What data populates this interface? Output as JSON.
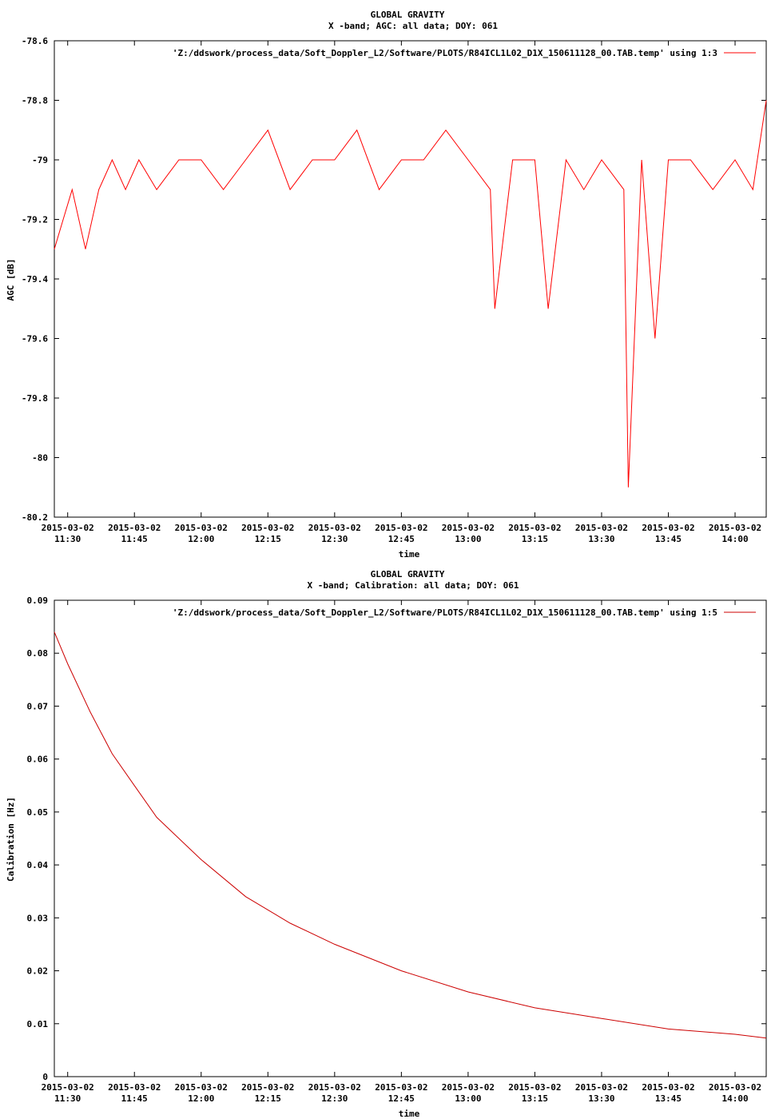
{
  "chart_data": [
    {
      "type": "line",
      "title": "GLOBAL GRAVITY",
      "subtitle": "X -band; AGC: all data; DOY: 061",
      "xlabel": "time",
      "ylabel": "AGC [dB]",
      "legend": "'Z:/ddswork/process_data/Soft_Doppler_L2/Software/PLOTS/R84ICL1L02_D1X_150611128_00.TAB.temp' using 1:3",
      "legend_position": "top-right",
      "line_color": "#ff0000",
      "x_start": "2015-03-02 11:27",
      "x_end": "2015-03-02 14:07",
      "xtick_labels": [
        [
          "2015-03-02",
          "11:30"
        ],
        [
          "2015-03-02",
          "11:45"
        ],
        [
          "2015-03-02",
          "12:00"
        ],
        [
          "2015-03-02",
          "12:15"
        ],
        [
          "2015-03-02",
          "12:30"
        ],
        [
          "2015-03-02",
          "12:45"
        ],
        [
          "2015-03-02",
          "13:00"
        ],
        [
          "2015-03-02",
          "13:15"
        ],
        [
          "2015-03-02",
          "13:30"
        ],
        [
          "2015-03-02",
          "13:45"
        ],
        [
          "2015-03-02",
          "14:00"
        ]
      ],
      "ylim": [
        -80.2,
        -78.6
      ],
      "yticks": [
        -80.2,
        -80,
        -79.8,
        -79.6,
        -79.4,
        -79.2,
        -79,
        -78.8,
        -78.6
      ],
      "ytick_labels": [
        "-80.2",
        "-80",
        "-79.8",
        "-79.6",
        "-79.4",
        "-79.2",
        "-79",
        "-78.8",
        "-78.6"
      ],
      "series": [
        {
          "x": [
            "2015-03-02 11:27",
            "2015-03-02 11:29",
            "2015-03-02 11:31",
            "2015-03-02 11:34",
            "2015-03-02 11:37",
            "2015-03-02 11:40",
            "2015-03-02 11:43",
            "2015-03-02 11:46",
            "2015-03-02 11:50",
            "2015-03-02 11:55",
            "2015-03-02 12:00",
            "2015-03-02 12:05",
            "2015-03-02 12:10",
            "2015-03-02 12:15",
            "2015-03-02 12:20",
            "2015-03-02 12:25",
            "2015-03-02 12:30",
            "2015-03-02 12:35",
            "2015-03-02 12:40",
            "2015-03-02 12:45",
            "2015-03-02 12:50",
            "2015-03-02 12:55",
            "2015-03-02 13:00",
            "2015-03-02 13:05",
            "2015-03-02 13:06",
            "2015-03-02 13:10",
            "2015-03-02 13:15",
            "2015-03-02 13:18",
            "2015-03-02 13:22",
            "2015-03-02 13:26",
            "2015-03-02 13:30",
            "2015-03-02 13:35",
            "2015-03-02 13:36",
            "2015-03-02 13:39",
            "2015-03-02 13:42",
            "2015-03-02 13:45",
            "2015-03-02 13:50",
            "2015-03-02 13:55",
            "2015-03-02 14:00",
            "2015-03-02 14:04",
            "2015-03-02 14:07"
          ],
          "y": [
            -79.3,
            -79.2,
            -79.1,
            -79.3,
            -79.1,
            -79.0,
            -79.1,
            -79.0,
            -79.1,
            -79.0,
            -79.0,
            -79.1,
            -79.0,
            -78.9,
            -79.1,
            -79.0,
            -79.0,
            -78.9,
            -79.1,
            -79.0,
            -79.0,
            -78.9,
            -79.0,
            -79.1,
            -79.5,
            -79.0,
            -79.0,
            -79.5,
            -79.0,
            -79.1,
            -79.0,
            -79.1,
            -80.1,
            -79.0,
            -79.6,
            -79.0,
            -79.0,
            -79.1,
            -79.0,
            -79.1,
            -78.8
          ]
        }
      ]
    },
    {
      "type": "line",
      "title": "GLOBAL GRAVITY",
      "subtitle": "X -band; Calibration: all data; DOY: 061",
      "xlabel": "time",
      "ylabel": "Calibration [Hz]",
      "legend": "'Z:/ddswork/process_data/Soft_Doppler_L2/Software/PLOTS/R84ICL1L02_D1X_150611128_00.TAB.temp' using 1:5",
      "legend_position": "top-right",
      "line_color": "#cc0000",
      "x_start": "2015-03-02 11:27",
      "x_end": "2015-03-02 14:07",
      "xtick_labels": [
        [
          "2015-03-02",
          "11:30"
        ],
        [
          "2015-03-02",
          "11:45"
        ],
        [
          "2015-03-02",
          "12:00"
        ],
        [
          "2015-03-02",
          "12:15"
        ],
        [
          "2015-03-02",
          "12:30"
        ],
        [
          "2015-03-02",
          "12:45"
        ],
        [
          "2015-03-02",
          "13:00"
        ],
        [
          "2015-03-02",
          "13:15"
        ],
        [
          "2015-03-02",
          "13:30"
        ],
        [
          "2015-03-02",
          "13:45"
        ],
        [
          "2015-03-02",
          "14:00"
        ]
      ],
      "ylim": [
        0,
        0.09
      ],
      "yticks": [
        0,
        0.01,
        0.02,
        0.03,
        0.04,
        0.05,
        0.06,
        0.07,
        0.08,
        0.09
      ],
      "ytick_labels": [
        "0",
        "0.01",
        "0.02",
        "0.03",
        "0.04",
        "0.05",
        "0.06",
        "0.07",
        "0.08",
        "0.09"
      ],
      "series": [
        {
          "x": [
            "2015-03-02 11:27",
            "2015-03-02 11:30",
            "2015-03-02 11:35",
            "2015-03-02 11:40",
            "2015-03-02 11:45",
            "2015-03-02 11:50",
            "2015-03-02 11:55",
            "2015-03-02 12:00",
            "2015-03-02 12:10",
            "2015-03-02 12:20",
            "2015-03-02 12:30",
            "2015-03-02 12:45",
            "2015-03-02 13:00",
            "2015-03-02 13:15",
            "2015-03-02 13:30",
            "2015-03-02 13:45",
            "2015-03-02 14:00",
            "2015-03-02 14:07"
          ],
          "y": [
            0.084,
            0.078,
            0.069,
            0.061,
            0.055,
            0.049,
            0.045,
            0.041,
            0.034,
            0.029,
            0.025,
            0.02,
            0.016,
            0.013,
            0.011,
            0.009,
            0.008,
            0.0073
          ]
        }
      ]
    }
  ]
}
